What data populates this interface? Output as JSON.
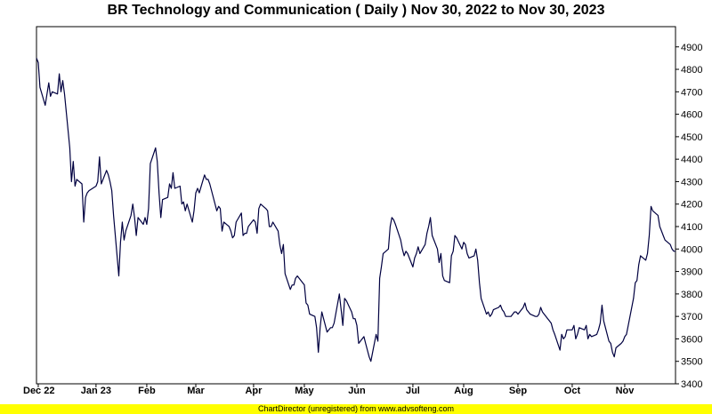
{
  "chart_data": {
    "type": "line",
    "title": "BR Technology and Communication ( Daily ) Nov 30, 2022 to Nov 30, 2023",
    "y_axis_side": "right",
    "ylim": [
      3400,
      4990
    ],
    "xlim": [
      "2022-11-30",
      "2023-11-30"
    ],
    "y_ticks": [
      3400,
      3500,
      3600,
      3700,
      3800,
      3900,
      4000,
      4100,
      4200,
      4300,
      4400,
      4500,
      4600,
      4700,
      4800,
      4900
    ],
    "x_ticks": [
      {
        "label": "Dec 22",
        "date": "2022-12-01"
      },
      {
        "label": "Jan 23",
        "date": "2023-01-03"
      },
      {
        "label": "Feb",
        "date": "2023-02-01"
      },
      {
        "label": "Mar",
        "date": "2023-03-01"
      },
      {
        "label": "Apr",
        "date": "2023-04-03"
      },
      {
        "label": "May",
        "date": "2023-05-02"
      },
      {
        "label": "Jun",
        "date": "2023-06-01"
      },
      {
        "label": "Jul",
        "date": "2023-07-03"
      },
      {
        "label": "Aug",
        "date": "2023-08-01"
      },
      {
        "label": "Sep",
        "date": "2023-09-01"
      },
      {
        "label": "Oct",
        "date": "2023-10-02"
      },
      {
        "label": "Nov",
        "date": "2023-11-01"
      }
    ],
    "grid": true,
    "line_color": "#000040",
    "series": [
      {
        "points": [
          [
            "2022-11-30",
            4850
          ],
          [
            "2022-12-01",
            4830
          ],
          [
            "2022-12-02",
            4720
          ],
          [
            "2022-12-05",
            4640
          ],
          [
            "2022-12-06",
            4690
          ],
          [
            "2022-12-07",
            4740
          ],
          [
            "2022-12-08",
            4680
          ],
          [
            "2022-12-09",
            4700
          ],
          [
            "2022-12-12",
            4690
          ],
          [
            "2022-12-13",
            4780
          ],
          [
            "2022-12-14",
            4700
          ],
          [
            "2022-12-15",
            4750
          ],
          [
            "2022-12-16",
            4690
          ],
          [
            "2022-12-19",
            4450
          ],
          [
            "2022-12-20",
            4300
          ],
          [
            "2022-12-21",
            4390
          ],
          [
            "2022-12-22",
            4280
          ],
          [
            "2022-12-23",
            4310
          ],
          [
            "2022-12-26",
            4290
          ],
          [
            "2022-12-27",
            4120
          ],
          [
            "2022-12-28",
            4230
          ],
          [
            "2022-12-29",
            4250
          ],
          [
            "2022-12-30",
            4260
          ],
          [
            "2023-01-03",
            4280
          ],
          [
            "2023-01-04",
            4300
          ],
          [
            "2023-01-05",
            4410
          ],
          [
            "2023-01-06",
            4290
          ],
          [
            "2023-01-09",
            4350
          ],
          [
            "2023-01-10",
            4330
          ],
          [
            "2023-01-11",
            4300
          ],
          [
            "2023-01-12",
            4260
          ],
          [
            "2023-01-13",
            4150
          ],
          [
            "2023-01-16",
            3880
          ],
          [
            "2023-01-17",
            4030
          ],
          [
            "2023-01-18",
            4120
          ],
          [
            "2023-01-19",
            4040
          ],
          [
            "2023-01-20",
            4080
          ],
          [
            "2023-01-23",
            4150
          ],
          [
            "2023-01-24",
            4200
          ],
          [
            "2023-01-25",
            4140
          ],
          [
            "2023-01-26",
            4060
          ],
          [
            "2023-01-27",
            4140
          ],
          [
            "2023-01-30",
            4110
          ],
          [
            "2023-01-31",
            4140
          ],
          [
            "2023-02-01",
            4110
          ],
          [
            "2023-02-02",
            4180
          ],
          [
            "2023-02-03",
            4380
          ],
          [
            "2023-02-06",
            4450
          ],
          [
            "2023-02-07",
            4390
          ],
          [
            "2023-02-08",
            4250
          ],
          [
            "2023-02-09",
            4140
          ],
          [
            "2023-02-10",
            4220
          ],
          [
            "2023-02-13",
            4230
          ],
          [
            "2023-02-14",
            4290
          ],
          [
            "2023-02-15",
            4270
          ],
          [
            "2023-02-16",
            4340
          ],
          [
            "2023-02-17",
            4270
          ],
          [
            "2023-02-20",
            4280
          ],
          [
            "2023-02-21",
            4200
          ],
          [
            "2023-02-22",
            4210
          ],
          [
            "2023-02-23",
            4170
          ],
          [
            "2023-02-24",
            4200
          ],
          [
            "2023-02-27",
            4120
          ],
          [
            "2023-02-28",
            4170
          ],
          [
            "2023-03-01",
            4250
          ],
          [
            "2023-03-02",
            4270
          ],
          [
            "2023-03-03",
            4250
          ],
          [
            "2023-03-06",
            4330
          ],
          [
            "2023-03-07",
            4310
          ],
          [
            "2023-03-08",
            4310
          ],
          [
            "2023-03-09",
            4290
          ],
          [
            "2023-03-10",
            4260
          ],
          [
            "2023-03-13",
            4170
          ],
          [
            "2023-03-14",
            4190
          ],
          [
            "2023-03-15",
            4180
          ],
          [
            "2023-03-16",
            4080
          ],
          [
            "2023-03-17",
            4120
          ],
          [
            "2023-03-20",
            4100
          ],
          [
            "2023-03-21",
            4080
          ],
          [
            "2023-03-22",
            4050
          ],
          [
            "2023-03-23",
            4060
          ],
          [
            "2023-03-24",
            4120
          ],
          [
            "2023-03-27",
            4160
          ],
          [
            "2023-03-28",
            4060
          ],
          [
            "2023-03-29",
            4070
          ],
          [
            "2023-03-30",
            4070
          ],
          [
            "2023-03-31",
            4100
          ],
          [
            "2023-04-03",
            4130
          ],
          [
            "2023-04-04",
            4120
          ],
          [
            "2023-04-05",
            4070
          ],
          [
            "2023-04-06",
            4180
          ],
          [
            "2023-04-07",
            4200
          ],
          [
            "2023-04-10",
            4180
          ],
          [
            "2023-04-11",
            4170
          ],
          [
            "2023-04-12",
            4100
          ],
          [
            "2023-04-13",
            4100
          ],
          [
            "2023-04-14",
            4120
          ],
          [
            "2023-04-17",
            4080
          ],
          [
            "2023-04-18",
            4020
          ],
          [
            "2023-04-19",
            3980
          ],
          [
            "2023-04-20",
            4020
          ],
          [
            "2023-04-21",
            3890
          ],
          [
            "2023-04-24",
            3820
          ],
          [
            "2023-04-25",
            3840
          ],
          [
            "2023-04-26",
            3840
          ],
          [
            "2023-04-27",
            3870
          ],
          [
            "2023-04-28",
            3880
          ],
          [
            "2023-05-02",
            3840
          ],
          [
            "2023-05-03",
            3760
          ],
          [
            "2023-05-04",
            3750
          ],
          [
            "2023-05-05",
            3710
          ],
          [
            "2023-05-08",
            3700
          ],
          [
            "2023-05-09",
            3650
          ],
          [
            "2023-05-10",
            3540
          ],
          [
            "2023-05-11",
            3650
          ],
          [
            "2023-05-12",
            3720
          ],
          [
            "2023-05-15",
            3630
          ],
          [
            "2023-05-16",
            3640
          ],
          [
            "2023-05-17",
            3650
          ],
          [
            "2023-05-18",
            3650
          ],
          [
            "2023-05-19",
            3670
          ],
          [
            "2023-05-22",
            3800
          ],
          [
            "2023-05-23",
            3730
          ],
          [
            "2023-05-24",
            3660
          ],
          [
            "2023-05-25",
            3780
          ],
          [
            "2023-05-26",
            3770
          ],
          [
            "2023-05-29",
            3720
          ],
          [
            "2023-05-30",
            3690
          ],
          [
            "2023-05-31",
            3690
          ],
          [
            "2023-06-01",
            3660
          ],
          [
            "2023-06-02",
            3580
          ],
          [
            "2023-06-05",
            3610
          ],
          [
            "2023-06-06",
            3580
          ],
          [
            "2023-06-07",
            3550
          ],
          [
            "2023-06-08",
            3520
          ],
          [
            "2023-06-09",
            3500
          ],
          [
            "2023-06-12",
            3620
          ],
          [
            "2023-06-13",
            3590
          ],
          [
            "2023-06-14",
            3870
          ],
          [
            "2023-06-15",
            3920
          ],
          [
            "2023-06-16",
            3980
          ],
          [
            "2023-06-19",
            4000
          ],
          [
            "2023-06-20",
            4100
          ],
          [
            "2023-06-21",
            4140
          ],
          [
            "2023-06-22",
            4130
          ],
          [
            "2023-06-23",
            4110
          ],
          [
            "2023-06-26",
            4040
          ],
          [
            "2023-06-27",
            4000
          ],
          [
            "2023-06-28",
            3970
          ],
          [
            "2023-06-29",
            3990
          ],
          [
            "2023-06-30",
            3980
          ],
          [
            "2023-07-03",
            3920
          ],
          [
            "2023-07-04",
            3960
          ],
          [
            "2023-07-05",
            3980
          ],
          [
            "2023-07-06",
            4010
          ],
          [
            "2023-07-07",
            3980
          ],
          [
            "2023-07-10",
            4020
          ],
          [
            "2023-07-11",
            4070
          ],
          [
            "2023-07-12",
            4100
          ],
          [
            "2023-07-13",
            4140
          ],
          [
            "2023-07-14",
            4060
          ],
          [
            "2023-07-17",
            4000
          ],
          [
            "2023-07-18",
            3940
          ],
          [
            "2023-07-19",
            3980
          ],
          [
            "2023-07-20",
            3880
          ],
          [
            "2023-07-21",
            3860
          ],
          [
            "2023-07-24",
            3850
          ],
          [
            "2023-07-25",
            3970
          ],
          [
            "2023-07-26",
            3990
          ],
          [
            "2023-07-27",
            4060
          ],
          [
            "2023-07-28",
            4050
          ],
          [
            "2023-07-31",
            4000
          ],
          [
            "2023-08-01",
            4030
          ],
          [
            "2023-08-02",
            4020
          ],
          [
            "2023-08-03",
            3980
          ],
          [
            "2023-08-04",
            3960
          ],
          [
            "2023-08-07",
            3970
          ],
          [
            "2023-08-08",
            4000
          ],
          [
            "2023-08-09",
            3950
          ],
          [
            "2023-08-10",
            3850
          ],
          [
            "2023-08-11",
            3780
          ],
          [
            "2023-08-14",
            3710
          ],
          [
            "2023-08-15",
            3720
          ],
          [
            "2023-08-16",
            3700
          ],
          [
            "2023-08-17",
            3710
          ],
          [
            "2023-08-18",
            3730
          ],
          [
            "2023-08-21",
            3740
          ],
          [
            "2023-08-22",
            3750
          ],
          [
            "2023-08-23",
            3730
          ],
          [
            "2023-08-24",
            3720
          ],
          [
            "2023-08-25",
            3700
          ],
          [
            "2023-08-28",
            3700
          ],
          [
            "2023-08-29",
            3710
          ],
          [
            "2023-08-30",
            3720
          ],
          [
            "2023-08-31",
            3720
          ],
          [
            "2023-09-01",
            3710
          ],
          [
            "2023-09-04",
            3740
          ],
          [
            "2023-09-05",
            3760
          ],
          [
            "2023-09-06",
            3730
          ],
          [
            "2023-09-07",
            3720
          ],
          [
            "2023-09-08",
            3710
          ],
          [
            "2023-09-11",
            3700
          ],
          [
            "2023-09-12",
            3700
          ],
          [
            "2023-09-13",
            3710
          ],
          [
            "2023-09-14",
            3740
          ],
          [
            "2023-09-15",
            3720
          ],
          [
            "2023-09-18",
            3690
          ],
          [
            "2023-09-19",
            3680
          ],
          [
            "2023-09-20",
            3670
          ],
          [
            "2023-09-21",
            3640
          ],
          [
            "2023-09-22",
            3620
          ],
          [
            "2023-09-25",
            3550
          ],
          [
            "2023-09-26",
            3620
          ],
          [
            "2023-09-27",
            3600
          ],
          [
            "2023-09-28",
            3610
          ],
          [
            "2023-09-29",
            3640
          ],
          [
            "2023-10-02",
            3640
          ],
          [
            "2023-10-03",
            3660
          ],
          [
            "2023-10-04",
            3600
          ],
          [
            "2023-10-05",
            3620
          ],
          [
            "2023-10-06",
            3650
          ],
          [
            "2023-10-09",
            3640
          ],
          [
            "2023-10-10",
            3660
          ],
          [
            "2023-10-11",
            3600
          ],
          [
            "2023-10-12",
            3620
          ],
          [
            "2023-10-13",
            3610
          ],
          [
            "2023-10-16",
            3620
          ],
          [
            "2023-10-17",
            3640
          ],
          [
            "2023-10-18",
            3670
          ],
          [
            "2023-10-19",
            3750
          ],
          [
            "2023-10-20",
            3680
          ],
          [
            "2023-10-23",
            3590
          ],
          [
            "2023-10-24",
            3580
          ],
          [
            "2023-10-25",
            3540
          ],
          [
            "2023-10-26",
            3520
          ],
          [
            "2023-10-27",
            3560
          ],
          [
            "2023-10-30",
            3580
          ],
          [
            "2023-10-31",
            3590
          ],
          [
            "2023-11-01",
            3610
          ],
          [
            "2023-11-02",
            3620
          ],
          [
            "2023-11-03",
            3660
          ],
          [
            "2023-11-06",
            3780
          ],
          [
            "2023-11-07",
            3850
          ],
          [
            "2023-11-08",
            3860
          ],
          [
            "2023-11-09",
            3930
          ],
          [
            "2023-11-10",
            3970
          ],
          [
            "2023-11-13",
            3950
          ],
          [
            "2023-11-14",
            3980
          ],
          [
            "2023-11-15",
            4060
          ],
          [
            "2023-11-16",
            4190
          ],
          [
            "2023-11-17",
            4170
          ],
          [
            "2023-11-20",
            4150
          ],
          [
            "2023-11-21",
            4100
          ],
          [
            "2023-11-22",
            4080
          ],
          [
            "2023-11-23",
            4060
          ],
          [
            "2023-11-24",
            4040
          ],
          [
            "2023-11-27",
            4020
          ],
          [
            "2023-11-28",
            4000
          ],
          [
            "2023-11-29",
            3990
          ],
          [
            "2023-11-30",
            3990
          ]
        ]
      }
    ]
  },
  "footer": {
    "text": "ChartDirector (unregistered) from www.advsofteng.com"
  }
}
